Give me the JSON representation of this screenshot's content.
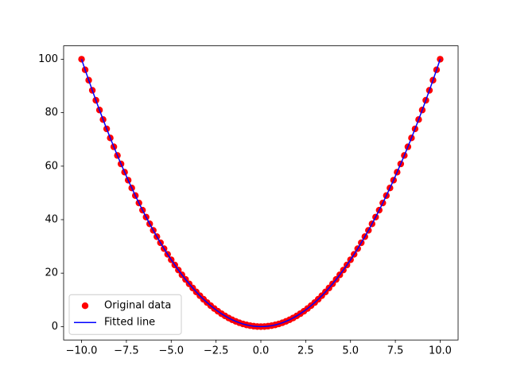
{
  "chart_data": {
    "type": "line",
    "x": [
      -10,
      -9.8,
      -9.6,
      -9.4,
      -9.2,
      -9,
      -8.8,
      -8.6,
      -8.4,
      -8.2,
      -8,
      -7.8,
      -7.6,
      -7.4,
      -7.2,
      -7,
      -6.8,
      -6.6,
      -6.4,
      -6.2,
      -6,
      -5.8,
      -5.6,
      -5.4,
      -5.2,
      -5,
      -4.8,
      -4.6,
      -4.4,
      -4.2,
      -4,
      -3.8,
      -3.6,
      -3.4,
      -3.2,
      -3,
      -2.8,
      -2.6,
      -2.4,
      -2.2,
      -2,
      -1.8,
      -1.6,
      -1.4,
      -1.2,
      -1,
      -0.8,
      -0.6,
      -0.4,
      -0.2,
      0,
      0.2,
      0.4,
      0.6,
      0.8,
      1,
      1.2,
      1.4,
      1.6,
      1.8,
      2,
      2.2,
      2.4,
      2.6,
      2.8,
      3,
      3.2,
      3.4,
      3.6,
      3.8,
      4,
      4.2,
      4.4,
      4.6,
      4.8,
      5,
      5.2,
      5.4,
      5.6,
      5.8,
      6,
      6.2,
      6.4,
      6.6,
      6.8,
      7,
      7.2,
      7.4,
      7.6,
      7.8,
      8,
      8.2,
      8.4,
      8.6,
      8.8,
      9,
      9.2,
      9.4,
      9.6,
      9.8,
      10
    ],
    "series": [
      {
        "name": "Original data",
        "type": "scatter",
        "color": "#ff0000",
        "values": [
          100,
          96.04,
          92.16,
          88.36,
          84.64,
          81,
          77.44,
          73.96,
          70.56,
          67.24,
          64,
          60.84,
          57.76,
          54.76,
          51.84,
          49,
          46.24,
          43.56,
          40.96,
          38.44,
          36,
          33.64,
          31.36,
          29.16,
          27.04,
          25,
          23.04,
          21.16,
          19.36,
          17.64,
          16,
          14.44,
          12.96,
          11.56,
          10.24,
          9,
          7.84,
          6.76,
          5.76,
          4.84,
          4,
          3.24,
          2.56,
          1.96,
          1.44,
          1,
          0.64,
          0.36,
          0.16,
          0.04,
          0,
          0.04,
          0.16,
          0.36,
          0.64,
          1,
          1.44,
          1.96,
          2.56,
          3.24,
          4,
          4.84,
          5.76,
          6.76,
          7.84,
          9,
          10.24,
          11.56,
          12.96,
          14.44,
          16,
          17.64,
          19.36,
          21.16,
          23.04,
          25,
          27.04,
          29.16,
          31.36,
          33.64,
          36,
          38.44,
          40.96,
          43.56,
          46.24,
          49,
          51.84,
          54.76,
          57.76,
          60.84,
          64,
          67.24,
          70.56,
          73.96,
          77.44,
          81,
          84.64,
          88.36,
          92.16,
          96.04,
          100
        ]
      },
      {
        "name": "Fitted line",
        "type": "line",
        "color": "#0000ff",
        "values": [
          100,
          96.04,
          92.16,
          88.36,
          84.64,
          81,
          77.44,
          73.96,
          70.56,
          67.24,
          64,
          60.84,
          57.76,
          54.76,
          51.84,
          49,
          46.24,
          43.56,
          40.96,
          38.44,
          36,
          33.64,
          31.36,
          29.16,
          27.04,
          25,
          23.04,
          21.16,
          19.36,
          17.64,
          16,
          14.44,
          12.96,
          11.56,
          10.24,
          9,
          7.84,
          6.76,
          5.76,
          4.84,
          4,
          3.24,
          2.56,
          1.96,
          1.44,
          1,
          0.64,
          0.36,
          0.16,
          0.04,
          0,
          0.04,
          0.16,
          0.36,
          0.64,
          1,
          1.44,
          1.96,
          2.56,
          3.24,
          4,
          4.84,
          5.76,
          6.76,
          7.84,
          9,
          10.24,
          11.56,
          12.96,
          14.44,
          16,
          17.64,
          19.36,
          21.16,
          23.04,
          25,
          27.04,
          29.16,
          31.36,
          33.64,
          36,
          38.44,
          40.96,
          43.56,
          46.24,
          49,
          51.84,
          54.76,
          57.76,
          60.84,
          64,
          67.24,
          70.56,
          73.96,
          77.44,
          81,
          84.64,
          88.36,
          92.16,
          96.04,
          100
        ]
      }
    ],
    "xlim": [
      -11,
      11
    ],
    "xticks": [
      {
        "value": -10,
        "label": "−10.0"
      },
      {
        "value": -7.5,
        "label": "−7.5"
      },
      {
        "value": -5,
        "label": "−5.0"
      },
      {
        "value": -2.5,
        "label": "−2.5"
      },
      {
        "value": 0,
        "label": "0.0"
      },
      {
        "value": 2.5,
        "label": "2.5"
      },
      {
        "value": 5,
        "label": "5.0"
      },
      {
        "value": 7.5,
        "label": "7.5"
      },
      {
        "value": 10,
        "label": "10.0"
      }
    ],
    "ylim": [
      -5,
      105
    ],
    "yticks": [
      0,
      20,
      40,
      60,
      80,
      100
    ],
    "legend": "lower left"
  }
}
